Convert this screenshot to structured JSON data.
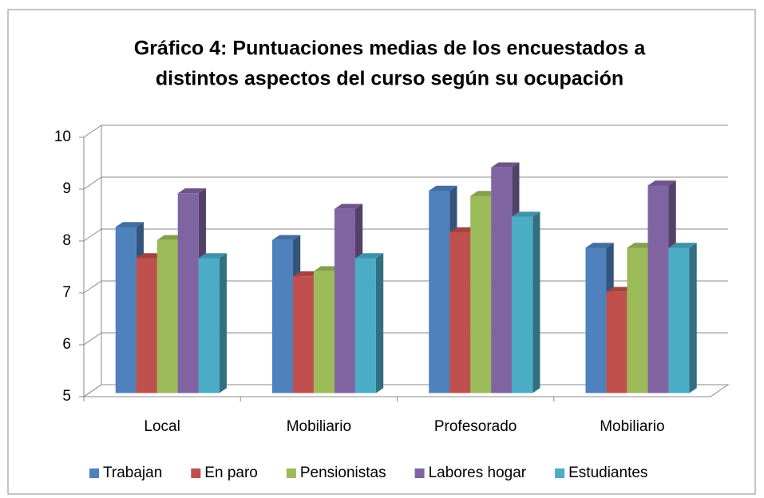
{
  "chart_data": {
    "type": "bar3d",
    "title": [
      "Gráfico 4: Puntuaciones medias de los encuestados a",
      "distintos aspectos del curso según su ocupación"
    ],
    "categories": [
      "Local",
      "Mobiliario",
      "Profesorado",
      "Mobiliario"
    ],
    "series": [
      {
        "name": "Trabajan",
        "color": "#4f81bd",
        "values": [
          8.2,
          7.95,
          8.9,
          7.8
        ]
      },
      {
        "name": "En paro",
        "color": "#c0504d",
        "values": [
          7.6,
          7.25,
          8.1,
          6.95
        ]
      },
      {
        "name": "Pensionistas",
        "color": "#9bbb59",
        "values": [
          7.95,
          7.35,
          8.8,
          7.8
        ]
      },
      {
        "name": "Labores hogar",
        "color": "#8064a2",
        "values": [
          8.85,
          8.55,
          9.35,
          9.0
        ]
      },
      {
        "name": "Estudiantes",
        "color": "#4bacc6",
        "values": [
          7.6,
          7.6,
          8.4,
          7.8
        ]
      }
    ],
    "ylim": [
      5,
      10
    ],
    "yticks": [
      5,
      6,
      7,
      8,
      9,
      10
    ],
    "grid": true,
    "legend": "bottom"
  }
}
